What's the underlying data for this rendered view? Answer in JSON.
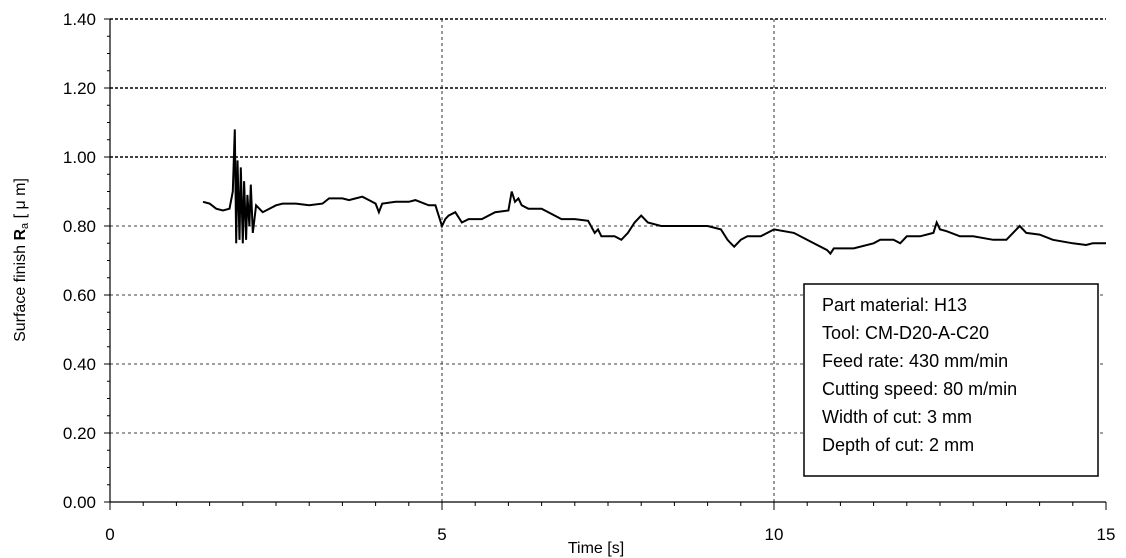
{
  "chart_data": {
    "type": "line",
    "xlabel": "Time [s]",
    "ylabel": "Surface finish Ra [ μ m]",
    "ylabel_parts": {
      "prefix": "Surface finish ",
      "symbol": "R",
      "subscript": "a",
      "suffix": " [ μ m]"
    },
    "xlim": [
      0,
      15
    ],
    "ylim": [
      0,
      1.4
    ],
    "x_ticks": [
      0,
      5,
      10,
      15
    ],
    "x_tick_labels": [
      "0",
      "5",
      "10",
      "15"
    ],
    "y_ticks": [
      0,
      0.2,
      0.4,
      0.6,
      0.8,
      1.0,
      1.2,
      1.4
    ],
    "y_tick_labels": [
      "0.00",
      "0.20",
      "0.40",
      "0.60",
      "0.80",
      "1.00",
      "1.20",
      "1.40"
    ],
    "grid": true,
    "series": [
      {
        "x": [
          1.4,
          1.5,
          1.6,
          1.7,
          1.8,
          1.85,
          1.88,
          1.9,
          1.92,
          1.95,
          1.97,
          2.0,
          2.02,
          2.05,
          2.07,
          2.1,
          2.12,
          2.15,
          2.2,
          2.3,
          2.4,
          2.5,
          2.6,
          2.8,
          3.0,
          3.2,
          3.3,
          3.5,
          3.6,
          3.7,
          3.8,
          3.9,
          4.0,
          4.05,
          4.1,
          4.3,
          4.5,
          4.6,
          4.8,
          4.9,
          5.0,
          5.05,
          5.1,
          5.2,
          5.3,
          5.4,
          5.6,
          5.8,
          6.0,
          6.05,
          6.1,
          6.15,
          6.2,
          6.3,
          6.4,
          6.5,
          6.8,
          7.0,
          7.2,
          7.3,
          7.35,
          7.4,
          7.6,
          7.7,
          7.8,
          7.9,
          8.0,
          8.1,
          8.3,
          8.6,
          9.0,
          9.2,
          9.3,
          9.35,
          9.4,
          9.5,
          9.6,
          9.8,
          10.0,
          10.3,
          10.6,
          10.8,
          10.85,
          10.9,
          11.2,
          11.5,
          11.6,
          11.8,
          11.9,
          12.0,
          12.2,
          12.4,
          12.45,
          12.5,
          12.6,
          12.8,
          13.0,
          13.3,
          13.5,
          13.6,
          13.7,
          13.8,
          14.0,
          14.2,
          14.5,
          14.7,
          14.8,
          15.0
        ],
        "y": [
          0.87,
          0.865,
          0.85,
          0.845,
          0.85,
          0.9,
          1.08,
          0.75,
          0.99,
          0.76,
          0.97,
          0.75,
          0.93,
          0.76,
          0.89,
          0.8,
          0.92,
          0.78,
          0.86,
          0.84,
          0.85,
          0.86,
          0.865,
          0.865,
          0.86,
          0.865,
          0.88,
          0.88,
          0.875,
          0.88,
          0.885,
          0.875,
          0.865,
          0.84,
          0.865,
          0.87,
          0.87,
          0.875,
          0.86,
          0.86,
          0.8,
          0.82,
          0.83,
          0.84,
          0.81,
          0.82,
          0.82,
          0.84,
          0.845,
          0.9,
          0.87,
          0.88,
          0.86,
          0.85,
          0.85,
          0.85,
          0.82,
          0.82,
          0.815,
          0.78,
          0.79,
          0.77,
          0.77,
          0.76,
          0.78,
          0.81,
          0.83,
          0.81,
          0.8,
          0.8,
          0.8,
          0.79,
          0.76,
          0.75,
          0.74,
          0.76,
          0.77,
          0.77,
          0.79,
          0.78,
          0.75,
          0.73,
          0.72,
          0.735,
          0.735,
          0.75,
          0.76,
          0.76,
          0.75,
          0.77,
          0.77,
          0.78,
          0.81,
          0.79,
          0.785,
          0.77,
          0.77,
          0.76,
          0.76,
          0.78,
          0.8,
          0.78,
          0.775,
          0.76,
          0.75,
          0.745,
          0.75,
          0.75
        ],
        "color": "#000000"
      }
    ],
    "legend_box": {
      "placement": "bottom-right",
      "lines": [
        "Part material: H13",
        "Tool: CM-D20-A-C20",
        "Feed rate: 430 mm/min",
        "Cutting speed: 80 m/min",
        "Width of cut: 3 mm",
        "Depth of cut: 2 mm"
      ]
    }
  }
}
